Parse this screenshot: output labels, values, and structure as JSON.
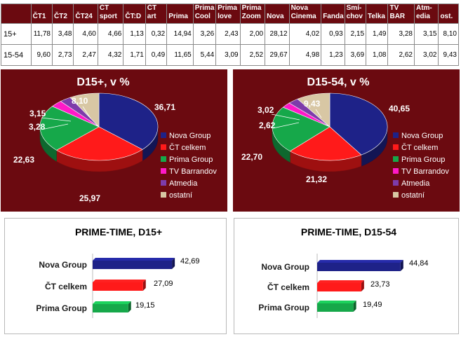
{
  "table": {
    "columns": [
      "ČT1",
      "ČT2",
      "ČT24",
      "ČT sport",
      "ČT:D",
      "ČT art",
      "Prima",
      "Prima Cool",
      "Prima love",
      "Prima Zoom",
      "Nova",
      "Nova Cinema",
      "Fanda",
      "Smí- chov",
      "Telka",
      "TV BAR",
      "Atm- edia",
      "ost."
    ],
    "rows": [
      {
        "label": "15+",
        "values": [
          "11,78",
          "3,48",
          "4,60",
          "4,66",
          "1,13",
          "0,32",
          "14,94",
          "3,26",
          "2,43",
          "2,00",
          "28,12",
          "4,02",
          "0,93",
          "2,15",
          "1,49",
          "3,28",
          "3,15",
          "8,10"
        ]
      },
      {
        "label": "15-54",
        "values": [
          "9,60",
          "2,73",
          "2,47",
          "4,32",
          "1,71",
          "0,49",
          "11,65",
          "5,44",
          "3,09",
          "2,52",
          "29,67",
          "4,98",
          "1,23",
          "3,69",
          "1,08",
          "2,62",
          "3,02",
          "9,43"
        ]
      }
    ]
  },
  "chart_data": [
    {
      "type": "pie",
      "title": "D15+, v %",
      "labels": [
        "Nova Group",
        "ČT celkem",
        "Prima Group",
        "TV Barrandov",
        "Atmedia",
        "ostatní"
      ],
      "values": [
        36.71,
        25.97,
        22.63,
        3.28,
        3.15,
        8.1
      ],
      "value_labels": [
        "36,71",
        "25,97",
        "22,63",
        "3,28",
        "3,15",
        "8,10"
      ],
      "colors": [
        "#1e2288",
        "#ff1a1a",
        "#16a84a",
        "#ff19c8",
        "#7d3caa",
        "#d8c7a4"
      ],
      "legend": "right"
    },
    {
      "type": "pie",
      "title": "D15-54, v %",
      "labels": [
        "Nova Group",
        "ČT celkem",
        "Prima Group",
        "TV Barrandov",
        "Atmedia",
        "ostatní"
      ],
      "values": [
        40.65,
        21.32,
        22.7,
        2.62,
        3.02,
        9.43
      ],
      "value_labels": [
        "40,65",
        "21,32",
        "22,70",
        "2,62",
        "3,02",
        "9,43"
      ],
      "colors": [
        "#1e2288",
        "#ff1a1a",
        "#16a84a",
        "#ff19c8",
        "#7d3caa",
        "#d8c7a4"
      ],
      "legend": "right"
    },
    {
      "type": "bar",
      "orientation": "horizontal",
      "title": "PRIME-TIME, D15+",
      "categories": [
        "Nova Group",
        "ČT celkem",
        "Prima Group"
      ],
      "values": [
        42.69,
        27.09,
        19.15
      ],
      "value_labels": [
        "42,69",
        "27,09",
        "19,15"
      ],
      "colors": [
        "#1e2288",
        "#ff1a1a",
        "#16a84a"
      ]
    },
    {
      "type": "bar",
      "orientation": "horizontal",
      "title": "PRIME-TIME, D15-54",
      "categories": [
        "Nova Group",
        "ČT celkem",
        "Prima Group"
      ],
      "values": [
        44.84,
        23.73,
        19.49
      ],
      "value_labels": [
        "44,84",
        "23,73",
        "19,49"
      ],
      "colors": [
        "#1e2288",
        "#ff1a1a",
        "#16a84a"
      ]
    }
  ]
}
